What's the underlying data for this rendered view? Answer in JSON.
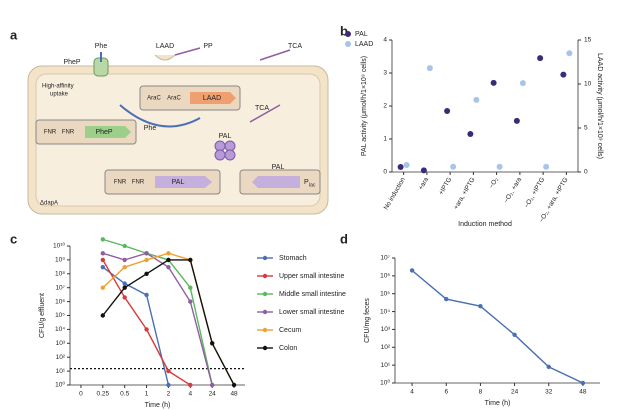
{
  "diagram": {
    "panel_label": "a",
    "nodes": [
      "Phe",
      "LAAD",
      "PP",
      "TCA",
      "PheP",
      "High-affinity",
      "uptake",
      "AraC",
      "AraC",
      "LAAD",
      "Phe",
      "TCA",
      "PAL",
      "FNR",
      "FNR",
      "PheP",
      "FNR",
      "FNR",
      "PAL",
      "PAL",
      "P",
      "lac",
      "ΔdapA"
    ]
  },
  "chart_data": [
    {
      "type": "dot",
      "panel_label": "b",
      "categories": [
        "No induction",
        "+ara",
        "+IPTG",
        "+ara, +IPTG",
        "−O₂",
        "−O₂, +ara",
        "−O₂, +IPTG",
        "−O₂, +ara, +IPTG"
      ],
      "series": [
        {
          "name": "PAL",
          "color": "#3b2a7a",
          "values": [
            0.15,
            0.05,
            1.85,
            1.15,
            2.7,
            1.55,
            3.45,
            2.95
          ]
        },
        {
          "name": "LAAD",
          "color": "#a8c4e8",
          "axis": "y2",
          "values": [
            0.8,
            11.8,
            0.6,
            8.2,
            0.6,
            10.1,
            0.6,
            13.5
          ]
        }
      ],
      "ylim": [
        0,
        4
      ],
      "yticks": [
        0,
        1,
        2,
        3,
        4
      ],
      "y2lim": [
        0,
        15
      ],
      "y2ticks": [
        0,
        5,
        10,
        15
      ],
      "xlabel": "Induction method",
      "ylabel": "PAL activity (μmol/h/1×10⁹ cells)",
      "y2label": "LAAD activity (μmol/h/1×10⁹ cells)",
      "legend": "upper left"
    },
    {
      "type": "line",
      "panel_label": "c",
      "categories": [
        "0",
        "0.25",
        "0.5",
        "1",
        "2",
        "4",
        "24",
        "48"
      ],
      "series": [
        {
          "name": "Stomach",
          "color": "#4a6fb5",
          "values": [
            null,
            300000000,
            20000000,
            3000000,
            1,
            null,
            null,
            null
          ]
        },
        {
          "name": "Upper small intestine",
          "color": "#d63b3b",
          "values": [
            null,
            1000000000,
            2000000,
            10000,
            10,
            1,
            null,
            null
          ]
        },
        {
          "name": "Middle small intestine",
          "color": "#5cb85c",
          "values": [
            null,
            30000000000,
            10000000000,
            3000000000,
            1000000000,
            10000000,
            1,
            null
          ]
        },
        {
          "name": "Lower small intestine",
          "color": "#8e5ea2",
          "values": [
            null,
            3000000000,
            1000000000,
            3000000000,
            300000000,
            1000000,
            1,
            null
          ]
        },
        {
          "name": "Cecum",
          "color": "#f0a030",
          "values": [
            null,
            10000000,
            300000000,
            1000000000,
            3000000000,
            1000000000,
            1000,
            1
          ]
        },
        {
          "name": "Colon",
          "color": "#111111",
          "values": [
            null,
            100000,
            10000000,
            100000000,
            1000000000,
            1000000000,
            1000,
            1
          ]
        }
      ],
      "log_y": true,
      "ylim": [
        1,
        10000000000
      ],
      "yticks": [
        {
          "value": 1,
          "label": "10⁰"
        },
        {
          "value": 10,
          "label": "10¹"
        },
        {
          "value": 100,
          "label": "10²"
        },
        {
          "value": 1000,
          "label": "10³"
        },
        {
          "value": 10000,
          "label": "10⁴"
        },
        {
          "value": 100000,
          "label": "10⁵"
        },
        {
          "value": 1000000,
          "label": "10⁶"
        },
        {
          "value": 10000000,
          "label": "10⁷"
        },
        {
          "value": 100000000,
          "label": "10⁸"
        },
        {
          "value": 1000000000,
          "label": "10⁹"
        },
        {
          "value": 10000000000,
          "label": "10¹⁰"
        }
      ],
      "reference_line": 15,
      "xlabel": "Time (h)",
      "ylabel": "CFU/g effluent",
      "legend": "right"
    },
    {
      "type": "line",
      "panel_label": "d",
      "categories": [
        "4",
        "6",
        "8",
        "24",
        "32",
        "48"
      ],
      "values": [
        2000000,
        50000,
        20000,
        500,
        8,
        1
      ],
      "color": "#4a6fb5",
      "log_y": true,
      "ylim": [
        1,
        10000000
      ],
      "yticks": [
        {
          "value": 1,
          "label": "10⁰"
        },
        {
          "value": 10,
          "label": "10¹"
        },
        {
          "value": 100,
          "label": "10²"
        },
        {
          "value": 1000,
          "label": "10³"
        },
        {
          "value": 10000,
          "label": "10⁴"
        },
        {
          "value": 100000,
          "label": "10⁵"
        },
        {
          "value": 1000000,
          "label": "10⁶"
        },
        {
          "value": 10000000,
          "label": "10⁷"
        }
      ],
      "xlabel": "Time (h)",
      "ylabel": "CFU/mg feces"
    }
  ]
}
